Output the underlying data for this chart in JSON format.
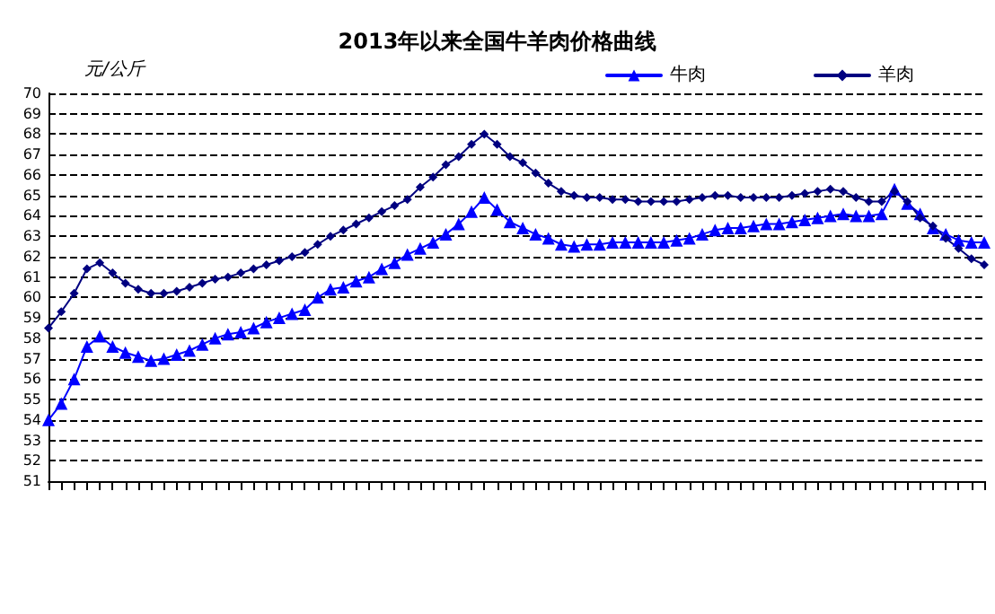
{
  "chart_data": {
    "type": "line",
    "title": "2013年以来全国牛羊肉价格曲线",
    "ylabel": "元/公斤",
    "categories": [
      null,
      null,
      null,
      null,
      null,
      null,
      null,
      null,
      null,
      null,
      null,
      null,
      null,
      null,
      null,
      null,
      null,
      null,
      null,
      null,
      null,
      null,
      null,
      null,
      null,
      null,
      null,
      null,
      null,
      null,
      null,
      null,
      null,
      null,
      null,
      null,
      null,
      null,
      null,
      null,
      null,
      null,
      null,
      null,
      null,
      null,
      null,
      null,
      null,
      null,
      null,
      null,
      null,
      null,
      null,
      null,
      null,
      null,
      null,
      null,
      null,
      null,
      null,
      null,
      null,
      null,
      null,
      null,
      null,
      null,
      null,
      null,
      null,
      null
    ],
    "series": [
      {
        "name": "牛肉",
        "color": "#0000ff",
        "marker": "triangle",
        "values": [
          54.0,
          54.8,
          56.0,
          57.6,
          58.1,
          57.6,
          57.3,
          57.1,
          56.9,
          57.0,
          57.2,
          57.4,
          57.7,
          58.0,
          58.2,
          58.3,
          58.5,
          58.8,
          59.0,
          59.2,
          59.4,
          60.0,
          60.4,
          60.5,
          60.8,
          61.0,
          61.4,
          61.7,
          62.1,
          62.4,
          62.7,
          63.1,
          63.6,
          64.2,
          64.9,
          64.3,
          63.7,
          63.4,
          63.1,
          62.9,
          62.6,
          62.5,
          62.6,
          62.6,
          62.7,
          62.7,
          62.7,
          62.7,
          62.7,
          62.8,
          62.9,
          63.1,
          63.3,
          63.4,
          63.4,
          63.5,
          63.6,
          63.6,
          63.7,
          63.8,
          63.9,
          64.0,
          64.1,
          64.0,
          64.0,
          64.1,
          65.3,
          64.6,
          64.1,
          63.4,
          63.1,
          62.8,
          62.7,
          62.7
        ]
      },
      {
        "name": "羊肉",
        "color": "#000080",
        "marker": "diamond",
        "values": [
          58.5,
          59.3,
          60.2,
          61.4,
          61.7,
          61.2,
          60.7,
          60.4,
          60.2,
          60.2,
          60.3,
          60.5,
          60.7,
          60.9,
          61.0,
          61.2,
          61.4,
          61.6,
          61.8,
          62.0,
          62.2,
          62.6,
          63.0,
          63.3,
          63.6,
          63.9,
          64.2,
          64.5,
          64.8,
          65.4,
          65.9,
          66.5,
          66.9,
          67.5,
          68.0,
          67.5,
          66.9,
          66.6,
          66.1,
          65.6,
          65.2,
          65.0,
          64.9,
          64.9,
          64.8,
          64.8,
          64.7,
          64.7,
          64.7,
          64.7,
          64.8,
          64.9,
          65.0,
          65.0,
          64.9,
          64.9,
          64.9,
          64.9,
          65.0,
          65.1,
          65.2,
          65.3,
          65.2,
          64.9,
          64.7,
          64.7,
          65.2,
          64.7,
          63.9,
          63.5,
          62.9,
          62.4,
          61.9,
          61.6
        ]
      }
    ],
    "ylim": [
      51,
      70
    ],
    "yticks": [
      51,
      52,
      53,
      54,
      55,
      56,
      57,
      58,
      59,
      60,
      61,
      62,
      63,
      64,
      65,
      66,
      67,
      68,
      69,
      70
    ],
    "grid": "y",
    "legend": "top right"
  }
}
